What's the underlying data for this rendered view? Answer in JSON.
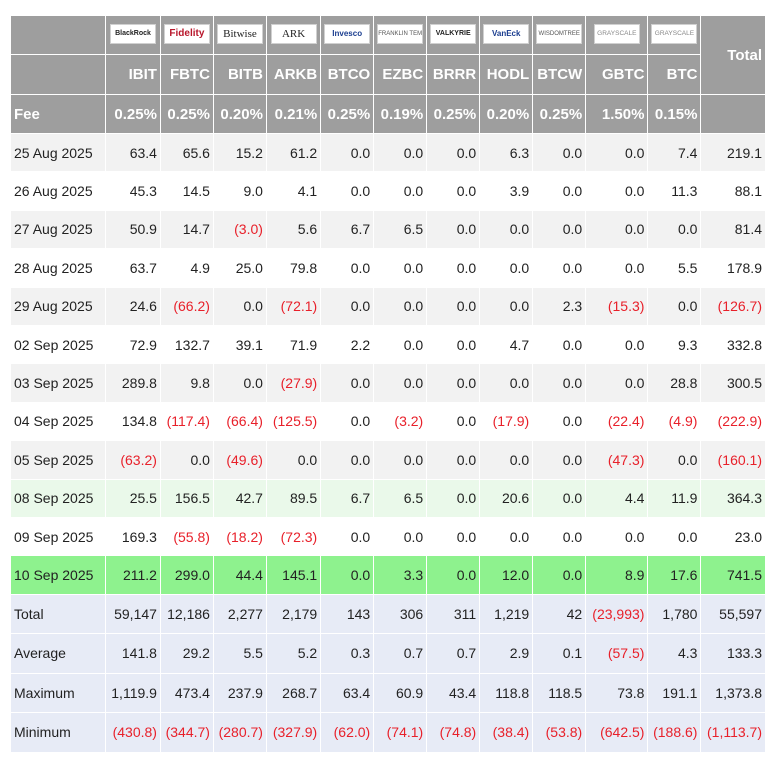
{
  "table": {
    "total_header": "Total",
    "logos": [
      {
        "text": "BlackRock",
        "icon": "blackrock-logo"
      },
      {
        "text": "Fidelity",
        "icon": "fidelity-logo"
      },
      {
        "text": "Bitwise",
        "icon": "bitwise-logo"
      },
      {
        "text": "ARK",
        "icon": "ark-invest-logo"
      },
      {
        "text": "Invesco",
        "icon": "invesco-logo"
      },
      {
        "text": "FRANKLIN TEMPLETON",
        "icon": "franklin-templeton-logo"
      },
      {
        "text": "VALKYRIE",
        "icon": "valkyrie-logo"
      },
      {
        "text": "VanEck",
        "icon": "vaneck-logo"
      },
      {
        "text": "WISDOMTREE",
        "icon": "wisdomtree-logo"
      },
      {
        "text": "GRAYSCALE",
        "icon": "grayscale-logo"
      },
      {
        "text": "GRAYSCALE",
        "icon": "grayscale-logo"
      }
    ],
    "tickers": [
      "IBIT",
      "FBTC",
      "BITB",
      "ARKB",
      "BTCO",
      "EZBC",
      "BRRR",
      "HODL",
      "BTCW",
      "GBTC",
      "BTC"
    ],
    "fee_label": "Fee",
    "fees": [
      "0.25%",
      "0.25%",
      "0.20%",
      "0.21%",
      "0.25%",
      "0.19%",
      "0.25%",
      "0.20%",
      "0.25%",
      "1.50%",
      "0.15%"
    ],
    "rows": [
      {
        "date": "25 Aug 2025",
        "values": [
          "63.4",
          "65.6",
          "15.2",
          "61.2",
          "0.0",
          "0.0",
          "0.0",
          "6.3",
          "0.0",
          "0.0",
          "7.4",
          "219.1"
        ]
      },
      {
        "date": "26 Aug 2025",
        "values": [
          "45.3",
          "14.5",
          "9.0",
          "4.1",
          "0.0",
          "0.0",
          "0.0",
          "3.9",
          "0.0",
          "0.0",
          "11.3",
          "88.1"
        ]
      },
      {
        "date": "27 Aug 2025",
        "values": [
          "50.9",
          "14.7",
          "(3.0)",
          "5.6",
          "6.7",
          "6.5",
          "0.0",
          "0.0",
          "0.0",
          "0.0",
          "0.0",
          "81.4"
        ]
      },
      {
        "date": "28 Aug 2025",
        "values": [
          "63.7",
          "4.9",
          "25.0",
          "79.8",
          "0.0",
          "0.0",
          "0.0",
          "0.0",
          "0.0",
          "0.0",
          "5.5",
          "178.9"
        ]
      },
      {
        "date": "29 Aug 2025",
        "values": [
          "24.6",
          "(66.2)",
          "0.0",
          "(72.1)",
          "0.0",
          "0.0",
          "0.0",
          "0.0",
          "2.3",
          "(15.3)",
          "0.0",
          "(126.7)"
        ]
      },
      {
        "date": "02 Sep 2025",
        "values": [
          "72.9",
          "132.7",
          "39.1",
          "71.9",
          "2.2",
          "0.0",
          "0.0",
          "4.7",
          "0.0",
          "0.0",
          "9.3",
          "332.8"
        ]
      },
      {
        "date": "03 Sep 2025",
        "values": [
          "289.8",
          "9.8",
          "0.0",
          "(27.9)",
          "0.0",
          "0.0",
          "0.0",
          "0.0",
          "0.0",
          "0.0",
          "28.8",
          "300.5"
        ]
      },
      {
        "date": "04 Sep 2025",
        "values": [
          "134.8",
          "(117.4)",
          "(66.4)",
          "(125.5)",
          "0.0",
          "(3.2)",
          "0.0",
          "(17.9)",
          "0.0",
          "(22.4)",
          "(4.9)",
          "(222.9)"
        ]
      },
      {
        "date": "05 Sep 2025",
        "values": [
          "(63.2)",
          "0.0",
          "(49.6)",
          "0.0",
          "0.0",
          "0.0",
          "0.0",
          "0.0",
          "0.0",
          "(47.3)",
          "0.0",
          "(160.1)"
        ]
      },
      {
        "date": "08 Sep 2025",
        "values": [
          "25.5",
          "156.5",
          "42.7",
          "89.5",
          "6.7",
          "6.5",
          "0.0",
          "20.6",
          "0.0",
          "4.4",
          "11.9",
          "364.3"
        ]
      },
      {
        "date": "09 Sep 2025",
        "values": [
          "169.3",
          "(55.8)",
          "(18.2)",
          "(72.3)",
          "0.0",
          "0.0",
          "0.0",
          "0.0",
          "0.0",
          "0.0",
          "0.0",
          "23.0"
        ]
      },
      {
        "date": "10 Sep 2025",
        "values": [
          "211.2",
          "299.0",
          "44.4",
          "145.1",
          "0.0",
          "3.3",
          "0.0",
          "12.0",
          "0.0",
          "8.9",
          "17.6",
          "741.5"
        ]
      }
    ],
    "summary": [
      {
        "label": "Total",
        "values": [
          "59,147",
          "12,186",
          "2,277",
          "2,179",
          "143",
          "306",
          "311",
          "1,219",
          "42",
          "(23,993)",
          "1,780",
          "55,597"
        ]
      },
      {
        "label": "Average",
        "values": [
          "141.8",
          "29.2",
          "5.5",
          "5.2",
          "0.3",
          "0.7",
          "0.7",
          "2.9",
          "0.1",
          "(57.5)",
          "4.3",
          "133.3"
        ]
      },
      {
        "label": "Maximum",
        "values": [
          "1,119.9",
          "473.4",
          "237.9",
          "268.7",
          "63.4",
          "60.9",
          "43.4",
          "118.8",
          "118.5",
          "73.8",
          "191.1",
          "1,373.8"
        ]
      },
      {
        "label": "Minimum",
        "values": [
          "(430.8)",
          "(344.7)",
          "(280.7)",
          "(327.9)",
          "(62.0)",
          "(74.1)",
          "(74.8)",
          "(38.4)",
          "(53.8)",
          "(642.5)",
          "(188.6)",
          "(1,113.7)"
        ]
      }
    ],
    "colors": {
      "header_bg": "#9e9e9e",
      "negative": "#e8202a",
      "highlight_light": "#eaf9ea",
      "highlight_bright": "#8ef28e",
      "summary_bg": "#e7ebf6"
    }
  }
}
